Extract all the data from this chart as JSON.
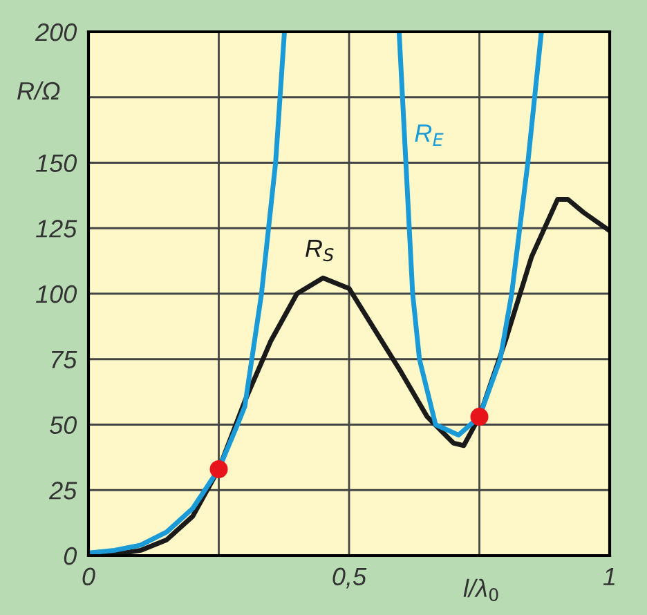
{
  "chart_data": {
    "type": "line",
    "xlabel": "l/λ$_{0}$",
    "ylabel": "R/Ω",
    "xlim": [
      0,
      1
    ],
    "ylim": [
      0,
      200
    ],
    "xticks": [
      0,
      {
        "value": 0.25,
        "label": null
      },
      {
        "value": 0.5,
        "label": "0,5"
      },
      {
        "value": 0.75,
        "label": null
      },
      1
    ],
    "yticks": [
      0,
      25,
      50,
      75,
      100,
      125,
      150,
      {
        "value": 175,
        "label": null
      },
      200
    ],
    "grid": true,
    "legend": false,
    "series": [
      {
        "name": "R$_{S}$",
        "color": "#1a1a1a",
        "x": [
          0,
          0.05,
          0.1,
          0.15,
          0.2,
          0.25,
          0.3,
          0.35,
          0.4,
          0.45,
          0.5,
          0.55,
          0.6,
          0.65,
          0.7,
          0.72,
          0.75,
          0.8,
          0.85,
          0.9,
          0.92,
          0.95,
          1
        ],
        "values": [
          0,
          0.5,
          2,
          6,
          15,
          33,
          59,
          82,
          100,
          106,
          102,
          86,
          70,
          53,
          43,
          42,
          53,
          82,
          114,
          136,
          136,
          131,
          124
        ]
      },
      {
        "name": "R$_{E}$",
        "color": "#1a9ad6",
        "x": [
          0,
          0.05,
          0.1,
          0.15,
          0.2,
          0.25,
          0.286,
          0.3,
          0.332,
          0.359,
          0.376,
          0.5,
          0.596,
          0.609,
          0.622,
          0.635,
          0.666,
          0.71,
          0.75,
          0.79,
          0.812,
          0.843,
          0.869
        ],
        "values": [
          1,
          2,
          4,
          9,
          18,
          33,
          50,
          57,
          100,
          150,
          200,
          null,
          200,
          150,
          100,
          75,
          50,
          46,
          53,
          75,
          100,
          150,
          200
        ]
      },
      {
        "type": "scatter",
        "color": "#e8141c",
        "marker": "circle",
        "x": [
          0.25,
          0.75
        ],
        "values": [
          33,
          53
        ]
      }
    ]
  }
}
